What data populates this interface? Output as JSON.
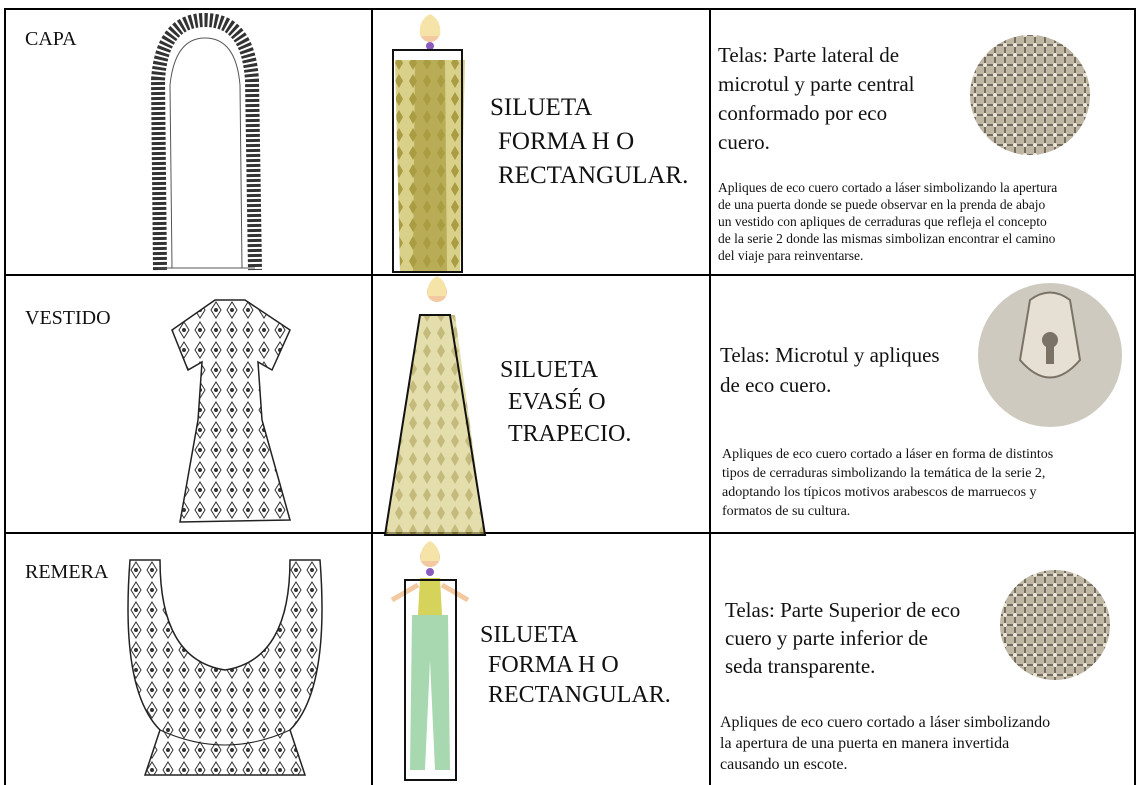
{
  "table": {
    "rows": [
      {
        "garment": "CAPA",
        "silhouette": [
          "SILUETA",
          "FORMA H O",
          "RECTANGULAR."
        ],
        "fabrics": [
          "Telas: Parte lateral de",
          "microtul y parte central",
          "conformado por eco",
          "cuero."
        ],
        "description": [
          "Apliques de eco cuero cortado a láser simbolizando la apertura",
          "de una puerta donde se puede observar en la prenda de abajo",
          "un vestido con apliques de cerraduras que refleja el concepto",
          "de la serie 2 donde las mismas simbolizan encontrar el camino",
          "del viaje para reinventarse."
        ]
      },
      {
        "garment": "VESTIDO",
        "silhouette": [
          "SILUETA",
          "EVASÉ O",
          "TRAPECIO."
        ],
        "fabrics": [
          "Telas: Microtul y apliques",
          "de eco cuero."
        ],
        "description": [
          "Apliques de eco cuero cortado a láser en forma de distintos",
          "tipos de cerraduras simbolizando la temática de la serie 2,",
          "adoptando los típicos motivos arabescos de marruecos y",
          "formatos de su cultura."
        ]
      },
      {
        "garment": "REMERA",
        "silhouette": [
          "SILUETA",
          "FORMA H O",
          "RECTANGULAR."
        ],
        "fabrics": [
          "Telas: Parte Superior de eco",
          "cuero y parte inferior de",
          "seda transparente."
        ],
        "description": [
          "Apliques de eco cuero cortado a láser simbolizando",
          "la apertura de una puerta en manera invertida",
          "causando un escote."
        ]
      }
    ]
  }
}
